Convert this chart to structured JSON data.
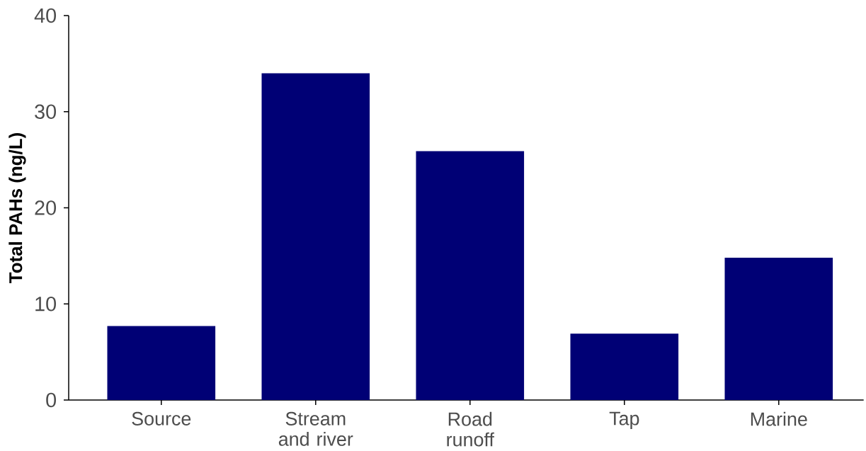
{
  "chart_data": {
    "type": "bar",
    "ylabel": "Total PAHs (ng/L)",
    "categories": [
      "Source",
      "Stream and river",
      "Road runoff",
      "Tap",
      "Marine"
    ],
    "values": [
      7.7,
      34.0,
      25.9,
      6.9,
      14.8
    ],
    "color": "#000075",
    "ylim": [
      0,
      40
    ],
    "yticks": [
      0,
      10,
      20,
      30,
      40
    ]
  }
}
